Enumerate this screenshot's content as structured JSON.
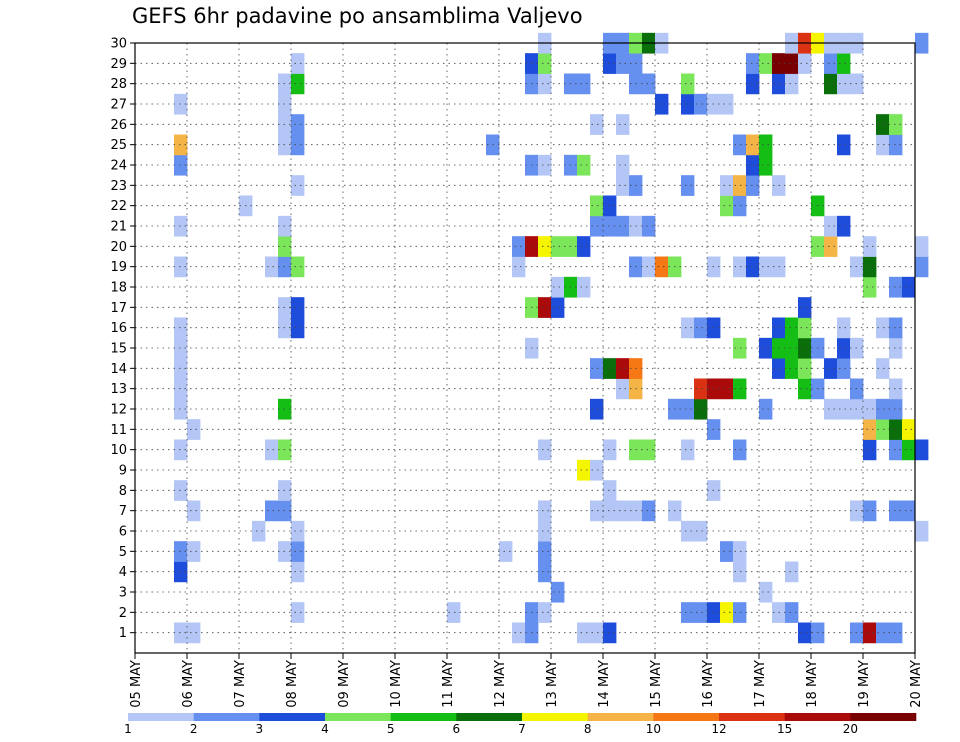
{
  "title": "GEFS 6hr padavine po ansamblima Valjevo",
  "chart_data": {
    "type": "heatmap",
    "title": "GEFS 6hr padavine po ansamblima Valjevo",
    "x_tick_labels": [
      "05 MAY",
      "06 MAY",
      "07 MAY",
      "08 MAY",
      "09 MAY",
      "10 MAY",
      "11 MAY",
      "12 MAY",
      "13 MAY",
      "14 MAY",
      "15 MAY",
      "16 MAY",
      "17 MAY",
      "18 MAY",
      "19 MAY",
      "20 MAY"
    ],
    "y_tick_labels": [
      "1",
      "2",
      "3",
      "4",
      "5",
      "6",
      "7",
      "8",
      "9",
      "10",
      "11",
      "12",
      "13",
      "14",
      "15",
      "16",
      "17",
      "18",
      "19",
      "20",
      "21",
      "22",
      "23",
      "24",
      "25",
      "26",
      "27",
      "28",
      "29",
      "30"
    ],
    "x_range": [
      0,
      15
    ],
    "y_range": [
      0,
      30
    ],
    "time_step_days": 0.25,
    "grid": "dotted",
    "colorbar": {
      "tick_labels": [
        "1",
        "2",
        "3",
        "4",
        "5",
        "6",
        "7",
        "8",
        "10",
        "12",
        "15",
        "20"
      ],
      "colors": [
        "#b4c6f5",
        "#6690f0",
        "#1e4ddc",
        "#7be65a",
        "#14be14",
        "#0a6e0a",
        "#f5f500",
        "#f5b446",
        "#f57814",
        "#dc3214",
        "#aa0a0a",
        "#780000"
      ]
    },
    "cells": [
      [
        0.75,
        1,
        0
      ],
      [
        1.0,
        1,
        0
      ],
      [
        7.25,
        1,
        0
      ],
      [
        7.5,
        1,
        1
      ],
      [
        8.5,
        1,
        0
      ],
      [
        8.75,
        1,
        0
      ],
      [
        9.0,
        1,
        2
      ],
      [
        12.75,
        1,
        2
      ],
      [
        13.0,
        1,
        1
      ],
      [
        13.75,
        1,
        1
      ],
      [
        14.0,
        1,
        10
      ],
      [
        14.25,
        1,
        1
      ],
      [
        14.5,
        1,
        1
      ],
      [
        3.0,
        2,
        0
      ],
      [
        6.0,
        2,
        0
      ],
      [
        7.5,
        2,
        1
      ],
      [
        7.75,
        2,
        0
      ],
      [
        10.5,
        2,
        1
      ],
      [
        10.75,
        2,
        1
      ],
      [
        11.0,
        2,
        2
      ],
      [
        11.25,
        2,
        6
      ],
      [
        11.5,
        2,
        1
      ],
      [
        12.25,
        2,
        0
      ],
      [
        12.5,
        2,
        1
      ],
      [
        8.0,
        3,
        1
      ],
      [
        12.0,
        3,
        0
      ],
      [
        0.75,
        4,
        2
      ],
      [
        3.0,
        4,
        0
      ],
      [
        7.75,
        4,
        1
      ],
      [
        11.5,
        4,
        0
      ],
      [
        12.5,
        4,
        0
      ],
      [
        0.75,
        5,
        1
      ],
      [
        1.0,
        5,
        0
      ],
      [
        2.75,
        5,
        0
      ],
      [
        3.0,
        5,
        1
      ],
      [
        7.0,
        5,
        0
      ],
      [
        7.75,
        5,
        1
      ],
      [
        11.25,
        5,
        1
      ],
      [
        11.5,
        5,
        0
      ],
      [
        2.25,
        6,
        0
      ],
      [
        3.0,
        6,
        0
      ],
      [
        7.75,
        6,
        0
      ],
      [
        10.5,
        6,
        0
      ],
      [
        10.75,
        6,
        0
      ],
      [
        15.0,
        6,
        0
      ],
      [
        1.0,
        7,
        0
      ],
      [
        2.5,
        7,
        1
      ],
      [
        2.75,
        7,
        1
      ],
      [
        7.75,
        7,
        0
      ],
      [
        8.75,
        7,
        0
      ],
      [
        9.0,
        7,
        0
      ],
      [
        9.25,
        7,
        0
      ],
      [
        9.5,
        7,
        0
      ],
      [
        9.75,
        7,
        1
      ],
      [
        10.25,
        7,
        0
      ],
      [
        13.75,
        7,
        0
      ],
      [
        14.0,
        7,
        1
      ],
      [
        14.5,
        7,
        1
      ],
      [
        14.75,
        7,
        1
      ],
      [
        0.75,
        8,
        0
      ],
      [
        2.75,
        8,
        0
      ],
      [
        9.0,
        8,
        0
      ],
      [
        11.0,
        8,
        0
      ],
      [
        8.5,
        9,
        6
      ],
      [
        8.75,
        9,
        0
      ],
      [
        0.75,
        10,
        0
      ],
      [
        2.5,
        10,
        0
      ],
      [
        2.75,
        10,
        3
      ],
      [
        7.75,
        10,
        0
      ],
      [
        9.0,
        10,
        0
      ],
      [
        9.5,
        10,
        3
      ],
      [
        9.75,
        10,
        3
      ],
      [
        10.5,
        10,
        0
      ],
      [
        11.5,
        10,
        1
      ],
      [
        14.0,
        10,
        2
      ],
      [
        14.5,
        10,
        1
      ],
      [
        14.75,
        10,
        4
      ],
      [
        15.0,
        10,
        2
      ],
      [
        1.0,
        11,
        0
      ],
      [
        11.0,
        11,
        1
      ],
      [
        14.0,
        11,
        7
      ],
      [
        14.25,
        11,
        3
      ],
      [
        14.5,
        11,
        5
      ],
      [
        14.75,
        11,
        6
      ],
      [
        0.75,
        12,
        0
      ],
      [
        2.75,
        12,
        4
      ],
      [
        8.75,
        12,
        2
      ],
      [
        10.25,
        12,
        1
      ],
      [
        10.5,
        12,
        1
      ],
      [
        10.75,
        12,
        5
      ],
      [
        12.0,
        12,
        1
      ],
      [
        13.25,
        12,
        0
      ],
      [
        13.5,
        12,
        0
      ],
      [
        13.75,
        12,
        0
      ],
      [
        14.0,
        12,
        0
      ],
      [
        14.25,
        12,
        1
      ],
      [
        14.5,
        12,
        1
      ],
      [
        0.75,
        13,
        0
      ],
      [
        9.25,
        13,
        0
      ],
      [
        9.5,
        13,
        7
      ],
      [
        10.75,
        13,
        9
      ],
      [
        11.0,
        13,
        10
      ],
      [
        11.25,
        13,
        10
      ],
      [
        11.5,
        13,
        4
      ],
      [
        12.75,
        13,
        4
      ],
      [
        13.0,
        13,
        1
      ],
      [
        13.75,
        13,
        1
      ],
      [
        14.5,
        13,
        0
      ],
      [
        0.75,
        14,
        0
      ],
      [
        8.75,
        14,
        1
      ],
      [
        9.0,
        14,
        5
      ],
      [
        9.25,
        14,
        10
      ],
      [
        9.5,
        14,
        8
      ],
      [
        12.25,
        14,
        2
      ],
      [
        12.5,
        14,
        4
      ],
      [
        12.75,
        14,
        3
      ],
      [
        13.25,
        14,
        2
      ],
      [
        13.5,
        14,
        1
      ],
      [
        14.25,
        14,
        0
      ],
      [
        0.75,
        15,
        0
      ],
      [
        7.5,
        15,
        0
      ],
      [
        11.5,
        15,
        3
      ],
      [
        12.0,
        15,
        2
      ],
      [
        12.25,
        15,
        4
      ],
      [
        12.5,
        15,
        4
      ],
      [
        12.75,
        15,
        5
      ],
      [
        13.0,
        15,
        1
      ],
      [
        13.5,
        15,
        2
      ],
      [
        13.75,
        15,
        0
      ],
      [
        14.5,
        15,
        0
      ],
      [
        0.75,
        16,
        0
      ],
      [
        2.75,
        16,
        0
      ],
      [
        3.0,
        16,
        2
      ],
      [
        10.5,
        16,
        0
      ],
      [
        10.75,
        16,
        1
      ],
      [
        11.0,
        16,
        2
      ],
      [
        12.25,
        16,
        2
      ],
      [
        12.5,
        16,
        4
      ],
      [
        12.75,
        16,
        3
      ],
      [
        13.5,
        16,
        0
      ],
      [
        14.25,
        16,
        0
      ],
      [
        14.5,
        16,
        1
      ],
      [
        2.75,
        17,
        0
      ],
      [
        3.0,
        17,
        2
      ],
      [
        7.5,
        17,
        3
      ],
      [
        7.75,
        17,
        10
      ],
      [
        8.0,
        17,
        2
      ],
      [
        12.75,
        17,
        2
      ],
      [
        8.0,
        18,
        0
      ],
      [
        8.25,
        18,
        4
      ],
      [
        8.5,
        18,
        0
      ],
      [
        14.0,
        18,
        3
      ],
      [
        14.5,
        18,
        1
      ],
      [
        14.75,
        18,
        2
      ],
      [
        0.75,
        19,
        0
      ],
      [
        2.5,
        19,
        0
      ],
      [
        2.75,
        19,
        1
      ],
      [
        3.0,
        19,
        3
      ],
      [
        7.25,
        19,
        0
      ],
      [
        9.5,
        19,
        1
      ],
      [
        9.75,
        19,
        0
      ],
      [
        10.0,
        19,
        8
      ],
      [
        10.25,
        19,
        3
      ],
      [
        11.0,
        19,
        0
      ],
      [
        11.5,
        19,
        0
      ],
      [
        11.75,
        19,
        2
      ],
      [
        12.0,
        19,
        0
      ],
      [
        12.25,
        19,
        0
      ],
      [
        13.75,
        19,
        0
      ],
      [
        14.0,
        19,
        5
      ],
      [
        15.0,
        19,
        1
      ],
      [
        2.75,
        20,
        3
      ],
      [
        7.25,
        20,
        1
      ],
      [
        7.5,
        20,
        10
      ],
      [
        7.75,
        20,
        6
      ],
      [
        8.0,
        20,
        3
      ],
      [
        8.25,
        20,
        3
      ],
      [
        8.5,
        20,
        2
      ],
      [
        13.0,
        20,
        3
      ],
      [
        13.25,
        20,
        7
      ],
      [
        14.0,
        20,
        0
      ],
      [
        15.0,
        20,
        0
      ],
      [
        0.75,
        21,
        0
      ],
      [
        2.75,
        21,
        0
      ],
      [
        8.75,
        21,
        1
      ],
      [
        9.0,
        21,
        1
      ],
      [
        9.25,
        21,
        1
      ],
      [
        9.5,
        21,
        0
      ],
      [
        9.75,
        21,
        1
      ],
      [
        13.25,
        21,
        0
      ],
      [
        13.5,
        21,
        2
      ],
      [
        2.0,
        22,
        0
      ],
      [
        8.75,
        22,
        3
      ],
      [
        9.0,
        22,
        2
      ],
      [
        11.25,
        22,
        3
      ],
      [
        11.5,
        22,
        1
      ],
      [
        13.0,
        22,
        4
      ],
      [
        3.0,
        23,
        0
      ],
      [
        9.25,
        23,
        0
      ],
      [
        9.5,
        23,
        1
      ],
      [
        10.5,
        23,
        1
      ],
      [
        11.25,
        23,
        0
      ],
      [
        11.5,
        23,
        7
      ],
      [
        11.75,
        23,
        1
      ],
      [
        12.25,
        23,
        0
      ],
      [
        0.75,
        24,
        1
      ],
      [
        7.5,
        24,
        1
      ],
      [
        7.75,
        24,
        0
      ],
      [
        8.25,
        24,
        1
      ],
      [
        8.5,
        24,
        3
      ],
      [
        9.25,
        24,
        0
      ],
      [
        11.75,
        24,
        2
      ],
      [
        12.0,
        24,
        4
      ],
      [
        0.75,
        25,
        7
      ],
      [
        2.75,
        25,
        0
      ],
      [
        3.0,
        25,
        1
      ],
      [
        6.75,
        25,
        1
      ],
      [
        11.5,
        25,
        1
      ],
      [
        11.75,
        25,
        7
      ],
      [
        12.0,
        25,
        4
      ],
      [
        13.5,
        25,
        2
      ],
      [
        14.25,
        25,
        0
      ],
      [
        14.5,
        25,
        1
      ],
      [
        2.75,
        26,
        0
      ],
      [
        3.0,
        26,
        1
      ],
      [
        8.75,
        26,
        0
      ],
      [
        9.25,
        26,
        0
      ],
      [
        14.25,
        26,
        5
      ],
      [
        14.5,
        26,
        3
      ],
      [
        0.75,
        27,
        0
      ],
      [
        2.75,
        27,
        0
      ],
      [
        10.0,
        27,
        2
      ],
      [
        10.5,
        27,
        2
      ],
      [
        10.75,
        27,
        1
      ],
      [
        11.0,
        27,
        0
      ],
      [
        11.25,
        27,
        0
      ],
      [
        2.75,
        28,
        0
      ],
      [
        3.0,
        28,
        4
      ],
      [
        7.5,
        28,
        1
      ],
      [
        7.75,
        28,
        0
      ],
      [
        8.25,
        28,
        1
      ],
      [
        8.5,
        28,
        1
      ],
      [
        9.5,
        28,
        1
      ],
      [
        9.75,
        28,
        1
      ],
      [
        10.5,
        28,
        3
      ],
      [
        11.75,
        28,
        2
      ],
      [
        12.25,
        28,
        2
      ],
      [
        12.5,
        28,
        0
      ],
      [
        13.25,
        28,
        5
      ],
      [
        13.5,
        28,
        0
      ],
      [
        13.75,
        28,
        0
      ],
      [
        3.0,
        29,
        0
      ],
      [
        7.5,
        29,
        2
      ],
      [
        7.75,
        29,
        3
      ],
      [
        9.0,
        29,
        2
      ],
      [
        9.25,
        29,
        1
      ],
      [
        9.5,
        29,
        1
      ],
      [
        11.75,
        29,
        1
      ],
      [
        12.0,
        29,
        3
      ],
      [
        12.25,
        29,
        11
      ],
      [
        12.5,
        29,
        11
      ],
      [
        12.75,
        29,
        0
      ],
      [
        13.25,
        29,
        1
      ],
      [
        13.5,
        29,
        4
      ],
      [
        7.75,
        30,
        0
      ],
      [
        9.0,
        30,
        1
      ],
      [
        9.25,
        30,
        1
      ],
      [
        9.5,
        30,
        3
      ],
      [
        9.75,
        30,
        5
      ],
      [
        10.0,
        30,
        0
      ],
      [
        12.5,
        30,
        0
      ],
      [
        12.75,
        30,
        9
      ],
      [
        13.0,
        30,
        6
      ],
      [
        13.25,
        30,
        0
      ],
      [
        13.5,
        30,
        0
      ],
      [
        13.75,
        30,
        0
      ],
      [
        15.0,
        30,
        1
      ]
    ]
  }
}
